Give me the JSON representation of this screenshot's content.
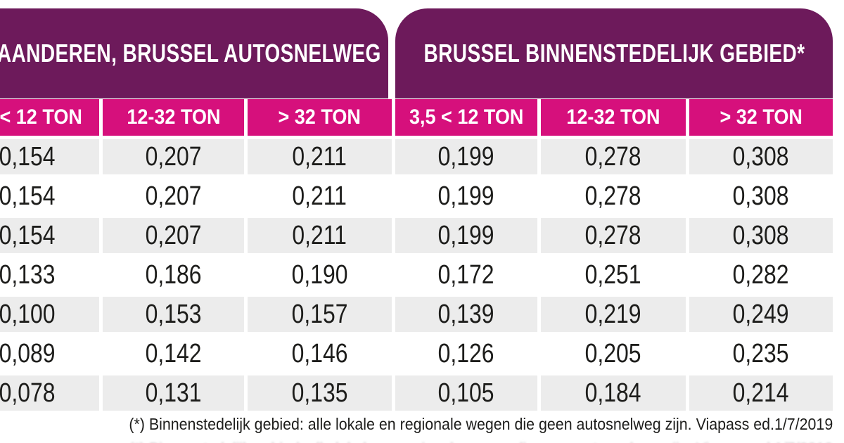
{
  "colors": {
    "group_header_purple": "#6d1a5b",
    "column_header_magenta": "#d6107c",
    "row_stripe_gray": "#ececec",
    "text_dark": "#1d1d1b",
    "text_white": "#ffffff"
  },
  "chart_data": {
    "type": "table",
    "column_groups": [
      {
        "label": "VLAANDEREN, BRUSSEL AUTOSNELWEG",
        "columns": [
          "< 12 TON",
          "12-32 TON",
          "> 32 TON"
        ]
      },
      {
        "label": "BRUSSEL BINNENSTEDELIJK GEBIED*",
        "columns": [
          "3,5 < 12 TON",
          "12-32 TON",
          "> 32 TON"
        ]
      }
    ],
    "rows": [
      [
        "0,154",
        "0,207",
        "0,211",
        "0,199",
        "0,278",
        "0,308"
      ],
      [
        "0,154",
        "0,207",
        "0,211",
        "0,199",
        "0,278",
        "0,308"
      ],
      [
        "0,154",
        "0,207",
        "0,211",
        "0,199",
        "0,278",
        "0,308"
      ],
      [
        "0,133",
        "0,186",
        "0,190",
        "0,172",
        "0,251",
        "0,282"
      ],
      [
        "0,100",
        "0,153",
        "0,157",
        "0,139",
        "0,219",
        "0,249"
      ],
      [
        "0,089",
        "0,142",
        "0,146",
        "0,126",
        "0,205",
        "0,235"
      ],
      [
        "0,078",
        "0,131",
        "0,135",
        "0,105",
        "0,184",
        "0,214"
      ]
    ],
    "footnote": "(*) Binnenstedelijk gebied: alle lokale en regionale wegen die geen autosnelweg zijn. Viapass ed.1/7/2019",
    "legend_position": "none",
    "grid": "white separators between cells, alternating gray/white row stripes"
  }
}
